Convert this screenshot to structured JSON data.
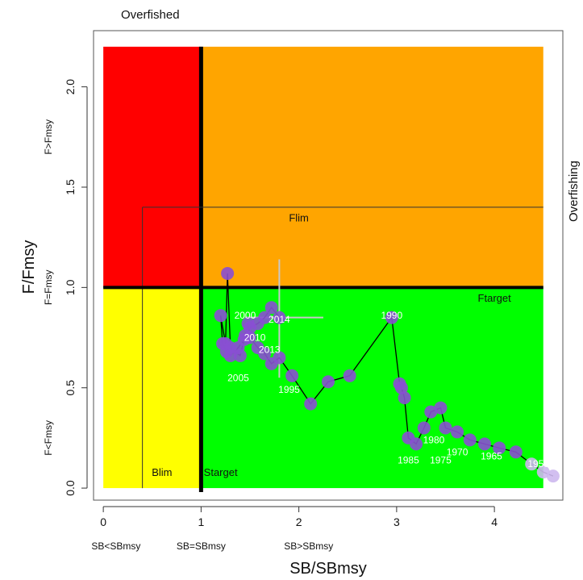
{
  "chart_data": {
    "type": "scatter",
    "xlabel": "SB/SBmsy",
    "ylabel": "F/Fmsy",
    "xlim": [
      -0.1,
      4.7
    ],
    "ylim": [
      -0.06,
      2.28
    ],
    "xticks": [
      0,
      1,
      2,
      3,
      4
    ],
    "yticks": [
      0.0,
      0.5,
      1.0,
      1.5,
      2.0
    ],
    "xtick_labels": [
      "0",
      "1",
      "2",
      "3",
      "4"
    ],
    "ytick_labels": [
      "0.0",
      "0.5",
      "1.0",
      "1.5",
      "2.0"
    ],
    "corner_labels": {
      "top_left": "Overfished",
      "right": "Overfishing"
    },
    "x_zone_labels": [
      {
        "text": "SB<SBmsy",
        "x": 0.13
      },
      {
        "text": "SB=SBmsy",
        "x": 1.0
      },
      {
        "text": "SB>SBmsy",
        "x": 2.1
      }
    ],
    "y_zone_labels": [
      {
        "text": "F>Fmsy",
        "y": 1.75
      },
      {
        "text": "F=Fmsy",
        "y": 1.0
      },
      {
        "text": "F<Fmsy",
        "y": 0.25
      }
    ],
    "zones": [
      {
        "name": "overfished-overfishing",
        "color": "#ff0000",
        "x": [
          0,
          1
        ],
        "y": [
          1,
          2.2
        ]
      },
      {
        "name": "overfishing",
        "color": "#ffa500",
        "x": [
          1,
          4.5
        ],
        "y": [
          1,
          2.2
        ]
      },
      {
        "name": "overfished",
        "color": "#ffff00",
        "x": [
          0,
          1
        ],
        "y": [
          0,
          1
        ]
      },
      {
        "name": "healthy",
        "color": "#00ff00",
        "x": [
          1,
          4.5
        ],
        "y": [
          0,
          1
        ]
      }
    ],
    "reference_lines": [
      {
        "label": "Blim",
        "orientation": "vertical",
        "value": 0.4,
        "label_x": 0.6,
        "label_y": 0.06
      },
      {
        "label": "Starget",
        "orientation": "vertical",
        "value": 1.0,
        "label_x": 1.2,
        "label_y": 0.06
      },
      {
        "label": "Flim",
        "orientation": "horizontal",
        "value": 1.4,
        "label_x": 2.0,
        "label_y": 1.33
      },
      {
        "label": "Ftarget",
        "orientation": "horizontal",
        "value": 1.0,
        "label_x": 4.0,
        "label_y": 0.93
      }
    ],
    "error_bars": {
      "x": 1.8,
      "y": 0.85,
      "x_range": [
        1.45,
        2.25
      ],
      "y_range": [
        0.55,
        1.14
      ]
    },
    "series": [
      {
        "x": [
          4.6,
          4.5,
          4.38,
          4.22,
          4.05,
          3.9,
          3.75,
          3.62,
          3.5,
          3.45,
          3.35,
          3.28,
          3.2,
          3.12,
          3.08,
          3.05,
          3.03,
          2.95,
          2.52,
          2.3,
          2.12,
          1.93,
          1.8,
          1.72,
          1.65,
          1.58,
          1.5,
          1.48,
          1.45,
          1.4,
          1.3,
          1.27,
          1.25,
          1.2,
          1.22,
          1.26,
          1.3,
          1.38,
          1.44,
          1.5,
          1.58,
          1.65,
          1.72,
          1.8
        ],
        "y": [
          0.06,
          0.08,
          0.12,
          0.18,
          0.2,
          0.22,
          0.24,
          0.28,
          0.3,
          0.4,
          0.38,
          0.3,
          0.22,
          0.25,
          0.45,
          0.5,
          0.52,
          0.85,
          0.56,
          0.53,
          0.42,
          0.56,
          0.65,
          0.62,
          0.67,
          0.7,
          0.75,
          0.82,
          0.76,
          0.66,
          0.7,
          1.07,
          0.72,
          0.86,
          0.72,
          0.68,
          0.66,
          0.7,
          0.74,
          0.8,
          0.82,
          0.85,
          0.9,
          0.85
        ]
      }
    ],
    "year_labels": [
      {
        "text": "1990",
        "x": 2.95,
        "y": 0.86
      },
      {
        "text": "2000",
        "x": 1.45,
        "y": 0.86
      },
      {
        "text": "2014",
        "x": 1.8,
        "y": 0.84
      },
      {
        "text": "2010",
        "x": 1.55,
        "y": 0.75
      },
      {
        "text": "2013",
        "x": 1.7,
        "y": 0.69
      },
      {
        "text": "2005",
        "x": 1.38,
        "y": 0.55
      },
      {
        "text": "1995",
        "x": 1.9,
        "y": 0.49
      },
      {
        "text": "1985",
        "x": 3.12,
        "y": 0.14
      },
      {
        "text": "1980",
        "x": 3.38,
        "y": 0.24
      },
      {
        "text": "1975",
        "x": 3.45,
        "y": 0.14
      },
      {
        "text": "1970",
        "x": 3.62,
        "y": 0.18
      },
      {
        "text": "1965",
        "x": 3.97,
        "y": 0.16
      },
      {
        "text": "1955",
        "x": 4.45,
        "y": 0.12
      }
    ],
    "colors": {
      "point": "#8a4fd3",
      "point_faded": "#cdb8ee",
      "line": "#000000",
      "error_bar": "#c8c8c8"
    }
  }
}
